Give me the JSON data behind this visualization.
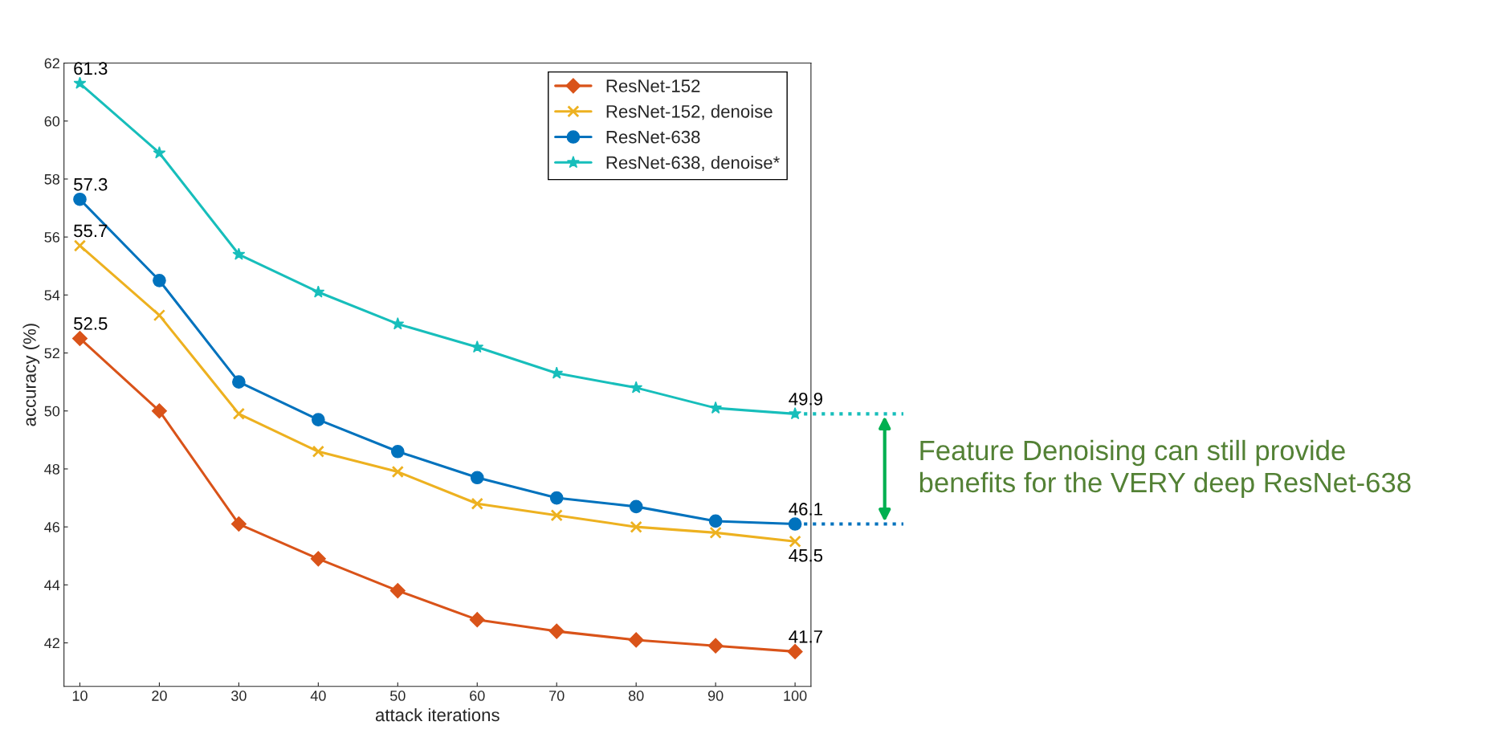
{
  "chart_data": {
    "type": "line",
    "x": [
      10,
      20,
      30,
      40,
      50,
      60,
      70,
      80,
      90,
      100
    ],
    "series": [
      {
        "name": "ResNet-152",
        "color": "#d95319",
        "marker": "diamond",
        "values": [
          52.5,
          50.0,
          46.1,
          44.9,
          43.8,
          42.8,
          42.4,
          42.1,
          41.9,
          41.7
        ],
        "value_labels": [
          "52.5",
          null,
          null,
          null,
          null,
          null,
          null,
          null,
          null,
          "41.7"
        ]
      },
      {
        "name": "ResNet-152, denoise",
        "color": "#edb120",
        "marker": "cross",
        "values": [
          55.7,
          53.3,
          49.9,
          48.6,
          47.9,
          46.8,
          46.4,
          46.0,
          45.8,
          45.5
        ],
        "value_labels": [
          "55.7",
          null,
          null,
          null,
          null,
          null,
          null,
          null,
          null,
          "45.5"
        ]
      },
      {
        "name": "ResNet-638",
        "color": "#0072bd",
        "marker": "circle",
        "values": [
          57.3,
          54.5,
          51.0,
          49.7,
          48.6,
          47.7,
          47.0,
          46.7,
          46.2,
          46.1
        ],
        "value_labels": [
          "57.3",
          null,
          null,
          null,
          null,
          null,
          null,
          null,
          null,
          "46.1"
        ]
      },
      {
        "name": "ResNet-638, denoise*",
        "color": "#17bebb",
        "marker": "star",
        "values": [
          61.3,
          58.9,
          55.4,
          54.1,
          53.0,
          52.2,
          51.3,
          50.8,
          50.1,
          49.9
        ],
        "value_labels": [
          "61.3",
          null,
          null,
          null,
          null,
          null,
          null,
          null,
          null,
          "49.9"
        ]
      }
    ],
    "xlabel": "attack iterations",
    "ylabel": "accuracy (%)",
    "xlim": [
      8,
      102
    ],
    "xticks": [
      10,
      20,
      30,
      40,
      50,
      60,
      70,
      80,
      90,
      100
    ],
    "ylim": [
      40.5,
      62
    ],
    "yticks": [
      42,
      44,
      46,
      48,
      50,
      52,
      54,
      56,
      58,
      60,
      62
    ],
    "grid": false,
    "legend": "top right",
    "line_style": "solid",
    "annotations": [
      {
        "text": "Feature Denoising can still provide\nbenefits for the VERY deep ResNet-638",
        "x": 100,
        "y": 49.9
      }
    ]
  }
}
